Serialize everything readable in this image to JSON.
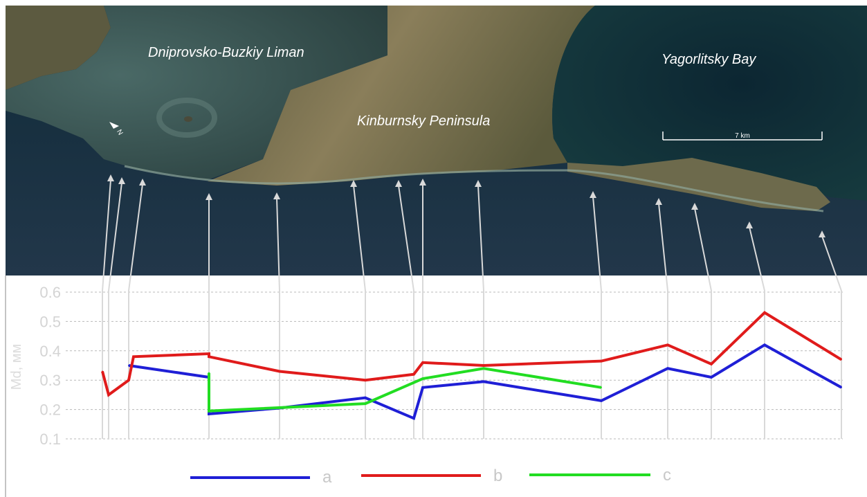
{
  "map": {
    "labels": {
      "liman": "Dniprovsko-Buzkiy Liman",
      "bay": "Yagorlitsky Bay",
      "peninsula": "Kinburnsky Peninsula"
    },
    "scale_bar": "7 km",
    "north": "N"
  },
  "colors": {
    "a": "#1f1fd6",
    "b": "#e01b1b",
    "c": "#22dd22",
    "sea_deep": "#173344",
    "land": "#6f6a4a",
    "arrow": "#d9d9d9"
  },
  "chart_data": {
    "type": "line",
    "ylabel": "Md, мм",
    "xlabel": "",
    "title": "",
    "ylim": [
      0.1,
      0.6
    ],
    "y_ticks": [
      "0.1",
      "0.2",
      "0.3",
      "0.4",
      "0.5",
      "0.6"
    ],
    "x_ticks_labels": false,
    "grid": true,
    "legend_placement": "bottom",
    "series": [
      {
        "name": "a",
        "color": "#1f1fd6",
        "x": [
          2,
          5,
          12,
          16,
          20,
          22,
          23,
          26,
          31,
          34,
          36,
          39,
          42
        ],
        "y": [
          0.35,
          0.31,
          0.185,
          0.205,
          0.24,
          0.17,
          0.275,
          0.295,
          0.23,
          0.34,
          0.31,
          0.42,
          0.275
        ]
      },
      {
        "name": "b",
        "color": "#e01b1b",
        "x": [
          0,
          1,
          2,
          3,
          5,
          12,
          16,
          20,
          22,
          23,
          26,
          31,
          34,
          36,
          39,
          42
        ],
        "y": [
          0.33,
          0.25,
          0.3,
          0.38,
          0.39,
          0.38,
          0.33,
          0.3,
          0.32,
          0.36,
          0.35,
          0.365,
          0.42,
          0.355,
          0.53,
          0.37
        ]
      },
      {
        "name": "c",
        "color": "#22dd22",
        "x": [
          5,
          12,
          20,
          23,
          26,
          31
        ],
        "y": [
          0.325,
          0.195,
          0.22,
          0.305,
          0.34,
          0.275
        ]
      }
    ],
    "legend": [
      "a",
      "b",
      "c"
    ]
  }
}
